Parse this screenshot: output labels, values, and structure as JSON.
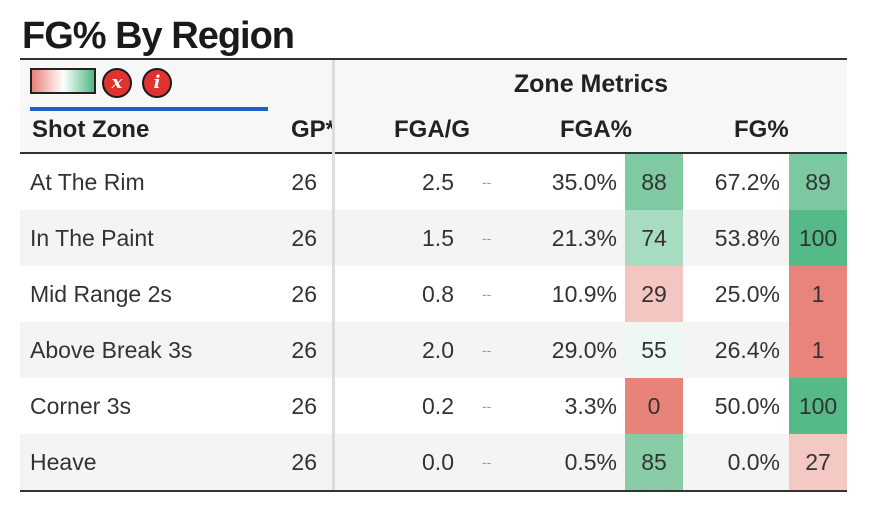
{
  "title": "FG% By Region",
  "controls": {
    "close_glyph": "x",
    "info_glyph": "i"
  },
  "group_header": "Zone Metrics",
  "columns": {
    "zone": "Shot Zone",
    "gp": "GP*",
    "fga": "FGA/G",
    "fgapct": "FGA%",
    "fgpct": "FG%"
  },
  "colors": {
    "low": "#e8837a",
    "high": "#4fb884",
    "legend_gradient": [
      "#e8837a",
      "#ffffff",
      "#4fb884"
    ]
  },
  "rows": [
    {
      "zone": "At The Rim",
      "gp": "26",
      "fga": "2.5",
      "dash": "--",
      "fgapct": "35.0%",
      "fgapct_rank": "88",
      "fgapct_color": "#7fcaa3",
      "fgpct": "67.2%",
      "fgpct_rank": "89",
      "fgpct_color": "#7cc9a1"
    },
    {
      "zone": "In The Paint",
      "gp": "26",
      "fga": "1.5",
      "dash": "--",
      "fgapct": "21.3%",
      "fgapct_rank": "74",
      "fgapct_color": "#a8dcc0",
      "fgpct": "53.8%",
      "fgpct_rank": "100",
      "fgpct_color": "#55ba87"
    },
    {
      "zone": "Mid Range 2s",
      "gp": "26",
      "fga": "0.8",
      "dash": "--",
      "fgapct": "10.9%",
      "fgapct_rank": "29",
      "fgapct_color": "#f4c6c1",
      "fgpct": "25.0%",
      "fgpct_rank": "1",
      "fgpct_color": "#e8847b"
    },
    {
      "zone": "Above Break 3s",
      "gp": "26",
      "fga": "2.0",
      "dash": "--",
      "fgapct": "29.0%",
      "fgapct_rank": "55",
      "fgapct_color": "#eef8f2",
      "fgpct": "26.4%",
      "fgpct_rank": "1",
      "fgpct_color": "#e8847b"
    },
    {
      "zone": "Corner 3s",
      "gp": "26",
      "fga": "0.2",
      "dash": "--",
      "fgapct": "3.3%",
      "fgapct_rank": "0",
      "fgapct_color": "#e8837a",
      "fgpct": "50.0%",
      "fgpct_rank": "100",
      "fgpct_color": "#55ba87"
    },
    {
      "zone": "Heave",
      "gp": "26",
      "fga": "0.0",
      "dash": "--",
      "fgapct": "0.5%",
      "fgapct_rank": "85",
      "fgapct_color": "#88cda8",
      "fgpct": "0.0%",
      "fgpct_rank": "27",
      "fgpct_color": "#f4c8c3"
    }
  ]
}
